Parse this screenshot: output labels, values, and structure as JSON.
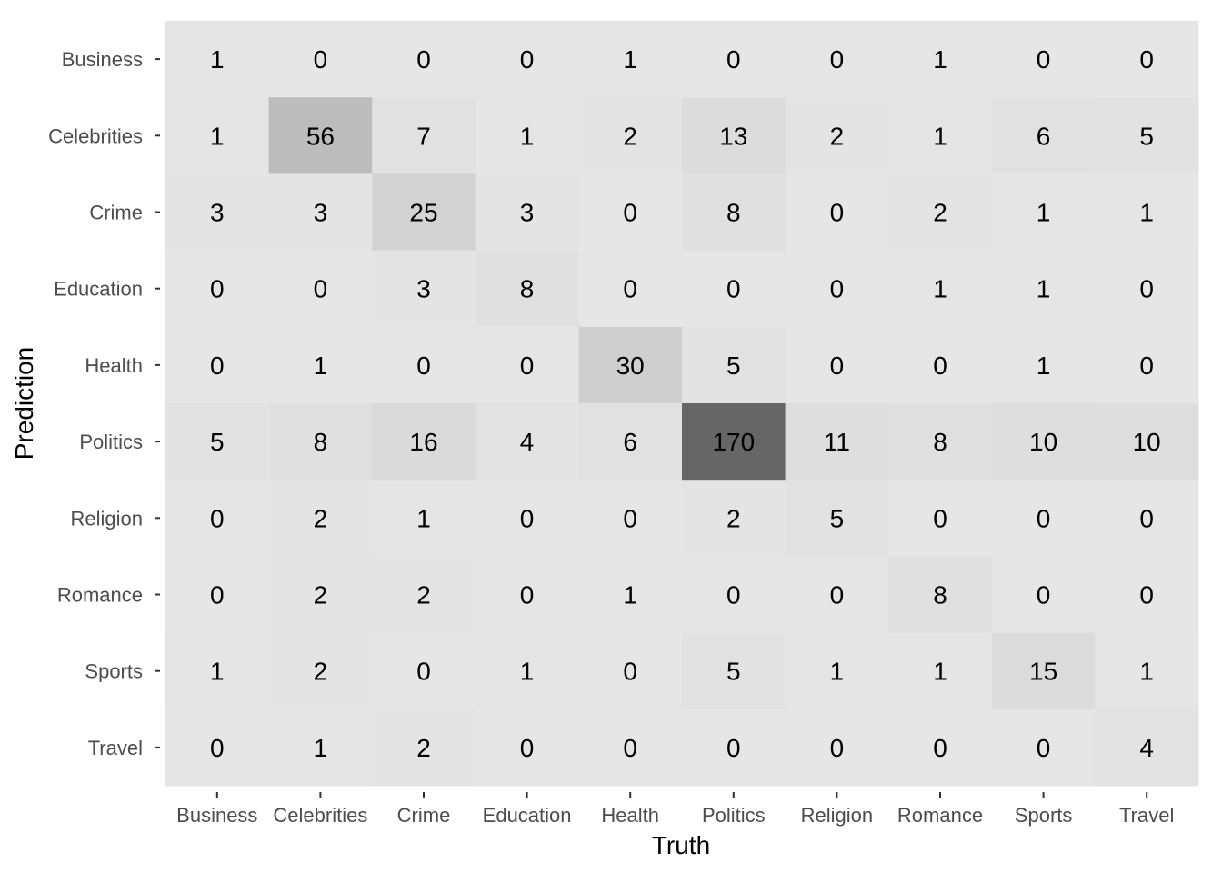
{
  "chart_data": {
    "type": "heatmap",
    "title": "",
    "xlabel": "Truth",
    "ylabel": "Prediction",
    "grid": false,
    "legend": "none",
    "x_categories": [
      "Business",
      "Celebrities",
      "Crime",
      "Education",
      "Health",
      "Politics",
      "Religion",
      "Romance",
      "Sports",
      "Travel"
    ],
    "y_categories": [
      "Business",
      "Celebrities",
      "Crime",
      "Education",
      "Health",
      "Politics",
      "Religion",
      "Romance",
      "Sports",
      "Travel"
    ],
    "values": [
      [
        1,
        0,
        0,
        0,
        1,
        0,
        0,
        1,
        0,
        0
      ],
      [
        1,
        56,
        7,
        1,
        2,
        13,
        2,
        1,
        6,
        5
      ],
      [
        3,
        3,
        25,
        3,
        0,
        8,
        0,
        2,
        1,
        1
      ],
      [
        0,
        0,
        3,
        8,
        0,
        0,
        0,
        1,
        1,
        0
      ],
      [
        0,
        1,
        0,
        0,
        30,
        5,
        0,
        0,
        1,
        0
      ],
      [
        5,
        8,
        16,
        4,
        6,
        170,
        11,
        8,
        10,
        10
      ],
      [
        0,
        2,
        1,
        0,
        0,
        2,
        5,
        0,
        0,
        0
      ],
      [
        0,
        2,
        2,
        0,
        1,
        0,
        0,
        8,
        0,
        0
      ],
      [
        1,
        2,
        0,
        1,
        0,
        5,
        1,
        1,
        15,
        1
      ],
      [
        0,
        1,
        2,
        0,
        0,
        0,
        0,
        0,
        0,
        4
      ]
    ],
    "color_low": "#e6e6e6",
    "color_high": "#666666"
  }
}
